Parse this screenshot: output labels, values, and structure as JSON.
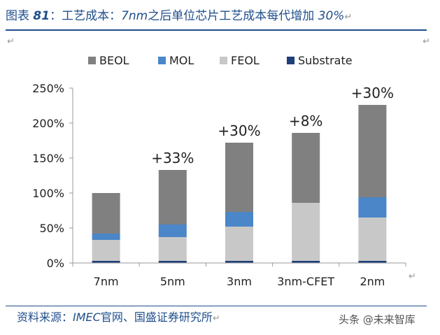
{
  "header": {
    "prefix": "图表",
    "number": "81",
    "colon": "：",
    "text_a": "工艺成本：",
    "node": "7nm",
    "text_b": "之后单位芯片工艺成本每代增加",
    "pct": "30%"
  },
  "footer": {
    "source_label": "资料来源：",
    "source_org": "IMEC",
    "source_rest": "官网、国盛证券研究所"
  },
  "watermark": "头条 @未来智库",
  "colors": {
    "title_blue": "#1f4e8c",
    "BEOL": "#808080",
    "MOL": "#4a86c8",
    "FEOL": "#c8c8c8",
    "Substrate": "#1f3f7a"
  },
  "chart_data": {
    "type": "bar",
    "stacked": true,
    "categories": [
      "7nm",
      "5nm",
      "3nm",
      "3nm-CFET",
      "2nm"
    ],
    "series": [
      {
        "name": "Substrate",
        "values": [
          3,
          3,
          3,
          3,
          3
        ]
      },
      {
        "name": "FEOL",
        "values": [
          30,
          34,
          49,
          83,
          62
        ]
      },
      {
        "name": "MOL",
        "values": [
          9,
          18,
          21,
          0,
          29
        ]
      },
      {
        "name": "BEOL",
        "values": [
          58,
          78,
          99,
          100,
          132
        ]
      }
    ],
    "legend_order": [
      "BEOL",
      "MOL",
      "FEOL",
      "Substrate"
    ],
    "legend_position": "top",
    "annotations": [
      "",
      "+33%",
      "+30%",
      "+8%",
      "+30%"
    ],
    "ylim": [
      0,
      250
    ],
    "yticks": [
      "0%",
      "50%",
      "100%",
      "150%",
      "200%",
      "250%"
    ],
    "grid": false
  }
}
